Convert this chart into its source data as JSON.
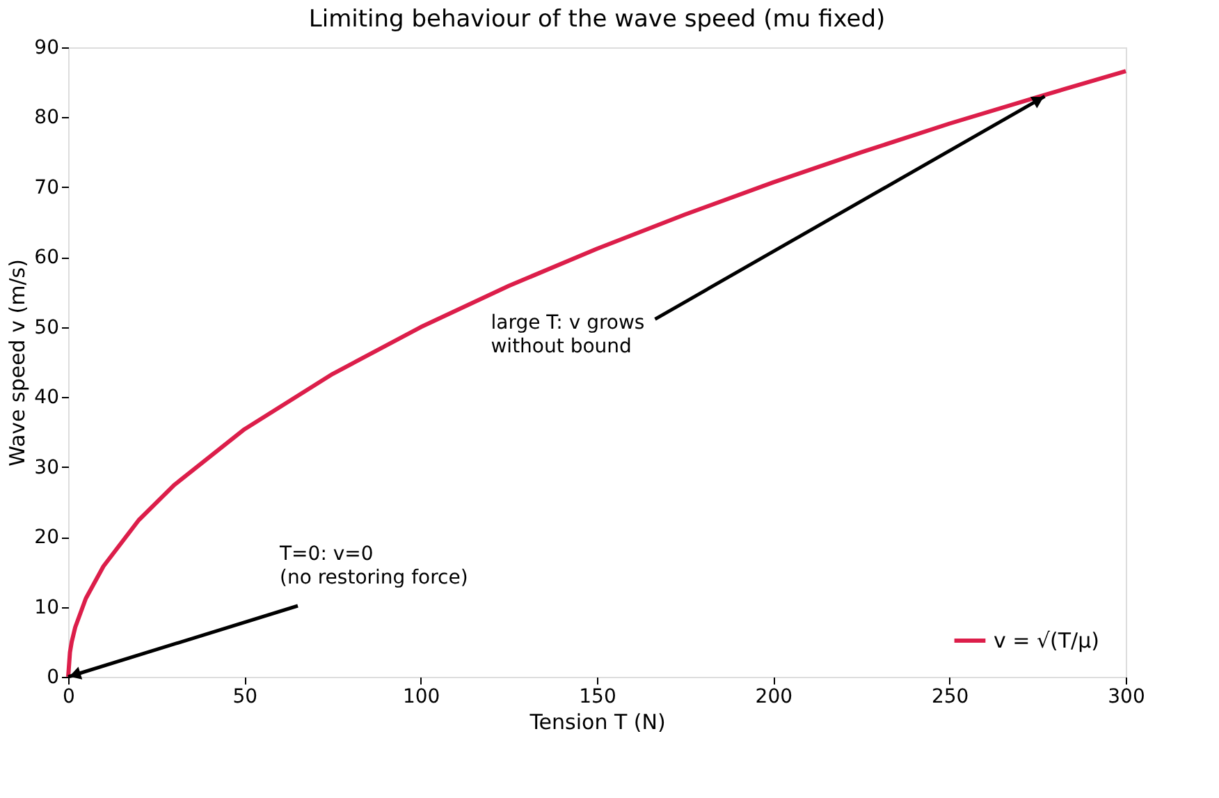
{
  "chart_data": {
    "type": "line",
    "title": "Limiting behaviour of the wave speed (mu fixed)",
    "xlabel": "Tension  T  (N)",
    "ylabel": "Wave speed  v  (m/s)",
    "x": [
      0,
      0.5,
      1,
      2,
      5,
      10,
      20,
      30,
      50,
      75,
      100,
      125,
      150,
      175,
      200,
      225,
      250,
      275,
      300
    ],
    "series": [
      {
        "name": "v = √(T/μ)",
        "color": "#dc1e4a",
        "values": [
          0,
          3.5,
          5,
          7.1,
          11.2,
          15.8,
          22.4,
          27.4,
          35.4,
          43.3,
          50,
          55.9,
          61.2,
          66.1,
          70.7,
          75,
          79.1,
          82.9,
          86.6
        ]
      }
    ],
    "xlim": [
      0,
      300
    ],
    "ylim": [
      0,
      90
    ],
    "xticks": [
      0,
      50,
      100,
      150,
      200,
      250,
      300
    ],
    "yticks": [
      0,
      10,
      20,
      30,
      40,
      50,
      60,
      70,
      80,
      90
    ],
    "annotations": [
      {
        "text": "T=0:  v=0\n(no restoring force)",
        "x": 0,
        "y": 0
      },
      {
        "text": "large T:  v grows\nwithout bound",
        "x": 277,
        "y": 83
      }
    ],
    "grid": false,
    "legend": "bottom right",
    "marker": "none",
    "line_style": "solid"
  }
}
